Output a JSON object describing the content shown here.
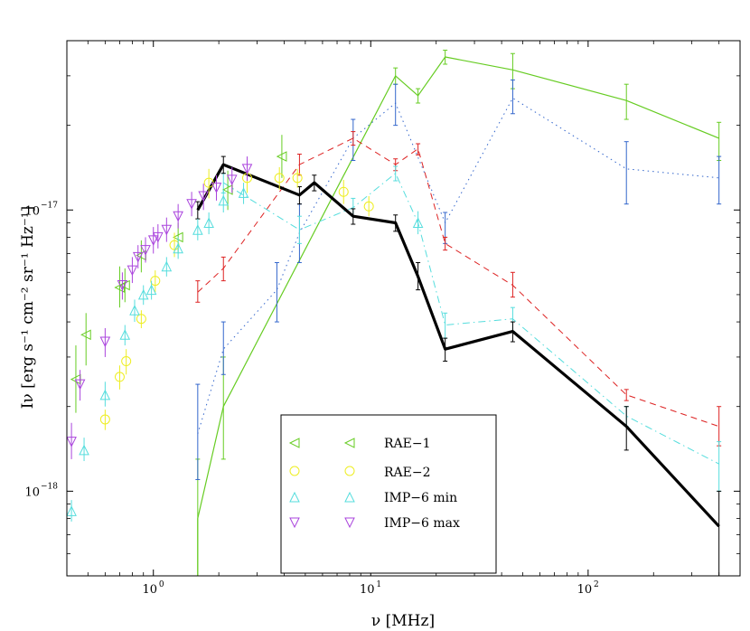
{
  "chart_data": {
    "type": "line",
    "title": "",
    "xlabel": "ν [MHz]",
    "ylabel": "Iν [erg s⁻¹ cm⁻² sr⁻¹ Hz⁻¹]",
    "xscale": "log",
    "yscale": "log",
    "xlim": [
      0.4,
      500
    ],
    "ylim": [
      5e-19,
      4e-17
    ],
    "x_ticks": [
      {
        "value": 1,
        "label": "10",
        "exp": "0"
      },
      {
        "value": 10,
        "label": "10",
        "exp": "1"
      },
      {
        "value": 100,
        "label": "10",
        "exp": "2"
      }
    ],
    "y_ticks": [
      {
        "value": 1e-18,
        "label": "10",
        "exp": "−18"
      },
      {
        "value": 1e-17,
        "label": "10",
        "exp": "−17"
      }
    ],
    "legend": {
      "position": "bottom-center",
      "entries": [
        {
          "label": "RAE−1",
          "marker": "triangle-left",
          "color": "#66cc22"
        },
        {
          "label": "RAE−2",
          "marker": "circle",
          "color": "#eeee22"
        },
        {
          "label": "IMP−6 min",
          "marker": "triangle-up",
          "color": "#55dddd"
        },
        {
          "label": "IMP−6 max",
          "marker": "triangle-down",
          "color": "#aa44dd"
        }
      ]
    },
    "series": [
      {
        "name": "RAE-1",
        "marker": "triangle-left",
        "color": "#66cc22",
        "points": [
          {
            "x": 0.44,
            "y": 2.5e-18,
            "lo": 1.9e-18,
            "hi": 3.3e-18
          },
          {
            "x": 0.49,
            "y": 3.6e-18,
            "lo": 2.8e-18,
            "hi": 4.3e-18
          },
          {
            "x": 0.7,
            "y": 5.3e-18,
            "lo": 4.5e-18,
            "hi": 6.3e-18
          },
          {
            "x": 0.74,
            "y": 5.4e-18,
            "lo": 4.7e-18,
            "hi": 6.2e-18
          },
          {
            "x": 0.88,
            "y": 6.9e-18,
            "lo": 6e-18,
            "hi": 7.8e-18
          },
          {
            "x": 1.3,
            "y": 8e-18,
            "lo": 7e-18,
            "hi": 9e-18
          },
          {
            "x": 2.2,
            "y": 1.18e-17,
            "lo": 1e-17,
            "hi": 1.38e-17
          },
          {
            "x": 3.9,
            "y": 1.55e-17,
            "lo": 1.3e-17,
            "hi": 1.85e-17
          }
        ]
      },
      {
        "name": "RAE-2",
        "marker": "circle",
        "color": "#eeee22",
        "points": [
          {
            "x": 0.6,
            "y": 1.8e-18,
            "lo": 1.65e-18,
            "hi": 1.95e-18
          },
          {
            "x": 0.7,
            "y": 2.55e-18,
            "lo": 2.3e-18,
            "hi": 2.8e-18
          },
          {
            "x": 0.75,
            "y": 2.9e-18,
            "lo": 2.6e-18,
            "hi": 3.2e-18
          },
          {
            "x": 0.88,
            "y": 4.1e-18,
            "lo": 3.8e-18,
            "hi": 4.4e-18
          },
          {
            "x": 1.02,
            "y": 5.6e-18,
            "lo": 5.1e-18,
            "hi": 6.1e-18
          },
          {
            "x": 1.25,
            "y": 7.5e-18,
            "lo": 6.8e-18,
            "hi": 8.3e-18
          },
          {
            "x": 1.8,
            "y": 1.25e-17,
            "lo": 1.1e-17,
            "hi": 1.4e-17
          },
          {
            "x": 2.7,
            "y": 1.3e-17,
            "lo": 1.15e-17,
            "hi": 1.45e-17
          },
          {
            "x": 3.8,
            "y": 1.3e-17,
            "lo": 1.18e-17,
            "hi": 1.42e-17
          },
          {
            "x": 4.6,
            "y": 1.3e-17,
            "lo": 1.2e-17,
            "hi": 1.4e-17
          },
          {
            "x": 7.5,
            "y": 1.16e-17,
            "lo": 1.05e-17,
            "hi": 1.28e-17
          },
          {
            "x": 9.8,
            "y": 1.03e-17,
            "lo": 9.5e-18,
            "hi": 1.12e-17
          }
        ]
      },
      {
        "name": "IMP-6 min",
        "marker": "triangle-up",
        "color": "#55dddd",
        "points": [
          {
            "x": 0.42,
            "y": 8.5e-19,
            "lo": 7.8e-19,
            "hi": 9.3e-19
          },
          {
            "x": 0.48,
            "y": 1.4e-18,
            "lo": 1.28e-18,
            "hi": 1.55e-18
          },
          {
            "x": 0.6,
            "y": 2.2e-18,
            "lo": 2e-18,
            "hi": 2.45e-18
          },
          {
            "x": 0.74,
            "y": 3.6e-18,
            "lo": 3.3e-18,
            "hi": 3.9e-18
          },
          {
            "x": 0.82,
            "y": 4.4e-18,
            "lo": 4e-18,
            "hi": 4.8e-18
          },
          {
            "x": 0.9,
            "y": 5e-18,
            "lo": 4.6e-18,
            "hi": 5.4e-18
          },
          {
            "x": 0.98,
            "y": 5.2e-18,
            "lo": 4.8e-18,
            "hi": 5.6e-18
          },
          {
            "x": 1.15,
            "y": 6.3e-18,
            "lo": 5.8e-18,
            "hi": 6.8e-18
          },
          {
            "x": 1.3,
            "y": 7.3e-18,
            "lo": 6.7e-18,
            "hi": 8e-18
          },
          {
            "x": 1.6,
            "y": 8.5e-18,
            "lo": 7.8e-18,
            "hi": 9.3e-18
          },
          {
            "x": 1.8,
            "y": 9e-18,
            "lo": 8.2e-18,
            "hi": 9.8e-18
          },
          {
            "x": 2.1,
            "y": 1.08e-17,
            "lo": 9.8e-18,
            "hi": 1.18e-17
          },
          {
            "x": 2.6,
            "y": 1.15e-17,
            "lo": 1.05e-17,
            "hi": 1.25e-17
          },
          {
            "x": 16.5,
            "y": 9e-18,
            "lo": 8.2e-18,
            "hi": 9.9e-18
          }
        ]
      },
      {
        "name": "IMP-6 max",
        "marker": "triangle-down",
        "color": "#aa44dd",
        "points": [
          {
            "x": 0.42,
            "y": 1.5e-18,
            "lo": 1.3e-18,
            "hi": 1.75e-18
          },
          {
            "x": 0.46,
            "y": 2.4e-18,
            "lo": 2.1e-18,
            "hi": 2.7e-18
          },
          {
            "x": 0.6,
            "y": 3.4e-18,
            "lo": 3e-18,
            "hi": 3.8e-18
          },
          {
            "x": 0.72,
            "y": 5.4e-18,
            "lo": 4.8e-18,
            "hi": 6e-18
          },
          {
            "x": 0.8,
            "y": 6.1e-18,
            "lo": 5.5e-18,
            "hi": 6.8e-18
          },
          {
            "x": 0.85,
            "y": 6.8e-18,
            "lo": 6.2e-18,
            "hi": 7.5e-18
          },
          {
            "x": 0.92,
            "y": 7.2e-18,
            "lo": 6.5e-18,
            "hi": 8e-18
          },
          {
            "x": 1.0,
            "y": 7.8e-18,
            "lo": 7e-18,
            "hi": 8.7e-18
          },
          {
            "x": 1.05,
            "y": 8e-18,
            "lo": 7.3e-18,
            "hi": 8.9e-18
          },
          {
            "x": 1.15,
            "y": 8.5e-18,
            "lo": 7.7e-18,
            "hi": 9.4e-18
          },
          {
            "x": 1.3,
            "y": 9.5e-18,
            "lo": 8.6e-18,
            "hi": 1.05e-17
          },
          {
            "x": 1.5,
            "y": 1.05e-17,
            "lo": 9.5e-18,
            "hi": 1.16e-17
          },
          {
            "x": 1.7,
            "y": 1.12e-17,
            "lo": 1e-17,
            "hi": 1.24e-17
          },
          {
            "x": 1.95,
            "y": 1.2e-17,
            "lo": 1.08e-17,
            "hi": 1.33e-17
          },
          {
            "x": 2.3,
            "y": 1.28e-17,
            "lo": 1.15e-17,
            "hi": 1.42e-17
          },
          {
            "x": 2.7,
            "y": 1.4e-17,
            "lo": 1.27e-17,
            "hi": 1.55e-17
          }
        ]
      }
    ],
    "lines": [
      {
        "name": "green-solid",
        "color": "#66cc22",
        "style": "solid",
        "width": 1.2,
        "points": [
          {
            "x": 1.6,
            "y": 5e-19
          },
          {
            "x": 1.6,
            "y": 8e-19,
            "lo": 5e-19,
            "hi": 1.3e-18
          },
          {
            "x": 2.1,
            "y": 2e-18,
            "lo": 1.3e-18,
            "hi": 3e-18
          },
          {
            "x": 13,
            "y": 3e-17,
            "lo": 2.8e-17,
            "hi": 3.2e-17
          },
          {
            "x": 16.5,
            "y": 2.55e-17,
            "lo": 2.4e-17,
            "hi": 2.7e-17
          },
          {
            "x": 22,
            "y": 3.5e-17,
            "lo": 3.3e-17,
            "hi": 3.7e-17
          },
          {
            "x": 45,
            "y": 3.15e-17,
            "lo": 2.7e-17,
            "hi": 3.6e-17
          },
          {
            "x": 150,
            "y": 2.45e-17,
            "lo": 2.1e-17,
            "hi": 2.8e-17
          },
          {
            "x": 400,
            "y": 1.8e-17,
            "lo": 1.5e-17,
            "hi": 2.05e-17
          }
        ]
      },
      {
        "name": "blue-dotted",
        "color": "#3366cc",
        "style": "dotted",
        "width": 1,
        "points": [
          {
            "x": 1.6,
            "y": 1.6e-18,
            "lo": 1.1e-18,
            "hi": 2.4e-18
          },
          {
            "x": 2.1,
            "y": 3.2e-18,
            "lo": 2.6e-18,
            "hi": 4e-18
          },
          {
            "x": 3.7,
            "y": 5.2e-18,
            "lo": 4e-18,
            "hi": 6.5e-18
          },
          {
            "x": 4.7,
            "y": 8.3e-18,
            "lo": 6.5e-18,
            "hi": 1.05e-17
          },
          {
            "x": 8.3,
            "y": 1.8e-17,
            "lo": 1.5e-17,
            "hi": 2.1e-17
          },
          {
            "x": 13,
            "y": 2.4e-17,
            "lo": 2e-17,
            "hi": 2.8e-17
          },
          {
            "x": 22,
            "y": 9e-18,
            "lo": 7.6e-18,
            "hi": 9.8e-18
          },
          {
            "x": 45,
            "y": 2.5e-17,
            "lo": 2.2e-17,
            "hi": 2.9e-17
          },
          {
            "x": 150,
            "y": 1.4e-17,
            "lo": 1.05e-17,
            "hi": 1.75e-17
          },
          {
            "x": 400,
            "y": 1.3e-17,
            "lo": 1.05e-17,
            "hi": 1.55e-17
          }
        ]
      },
      {
        "name": "red-dashed",
        "color": "#dd2222",
        "style": "dashed",
        "width": 1,
        "points": [
          {
            "x": 1.6,
            "y": 5.1e-18,
            "lo": 4.7e-18,
            "hi": 5.6e-18
          },
          {
            "x": 2.1,
            "y": 6.2e-18,
            "lo": 5.6e-18,
            "hi": 6.8e-18
          },
          {
            "x": 4.7,
            "y": 1.45e-17,
            "lo": 1.33e-17,
            "hi": 1.58e-17
          },
          {
            "x": 8.3,
            "y": 1.8e-17,
            "lo": 1.7e-17,
            "hi": 1.9e-17
          },
          {
            "x": 13,
            "y": 1.45e-17,
            "lo": 1.38e-17,
            "hi": 1.52e-17
          },
          {
            "x": 16.5,
            "y": 1.65e-17,
            "lo": 1.57e-17,
            "hi": 1.72e-17
          },
          {
            "x": 22,
            "y": 7.6e-18,
            "lo": 7.2e-18,
            "hi": 8e-18
          },
          {
            "x": 45,
            "y": 5.4e-18,
            "lo": 4.9e-18,
            "hi": 6e-18
          },
          {
            "x": 150,
            "y": 2.2e-18,
            "lo": 2.1e-18,
            "hi": 2.3e-18
          },
          {
            "x": 400,
            "y": 1.7e-18,
            "lo": 1.45e-18,
            "hi": 2e-18
          }
        ]
      },
      {
        "name": "cyan-dashdot",
        "color": "#55dddd",
        "style": "dashdot",
        "width": 1,
        "points": [
          {
            "x": 2.1,
            "y": 1.25e-17,
            "lo": 1.15e-17,
            "hi": 1.35e-17
          },
          {
            "x": 4.7,
            "y": 8.5e-18,
            "lo": 7.6e-18,
            "hi": 9.5e-18
          },
          {
            "x": 8.3,
            "y": 1.02e-17,
            "lo": 9.5e-18,
            "hi": 1.1e-17
          },
          {
            "x": 13,
            "y": 1.35e-17,
            "lo": 1.27e-17,
            "hi": 1.43e-17
          },
          {
            "x": 16.5,
            "y": 9e-18
          },
          {
            "x": 22,
            "y": 3.9e-18,
            "lo": 3.5e-18,
            "hi": 4.3e-18
          },
          {
            "x": 45,
            "y": 4.1e-18,
            "lo": 3.7e-18,
            "hi": 4.5e-18
          },
          {
            "x": 150,
            "y": 1.85e-18,
            "lo": 1.7e-18,
            "hi": 2e-18
          },
          {
            "x": 400,
            "y": 1.25e-18,
            "lo": 1e-18,
            "hi": 1.5e-18
          }
        ]
      },
      {
        "name": "black-thick",
        "color": "#000000",
        "style": "solid",
        "width": 3.2,
        "points": [
          {
            "x": 1.6,
            "y": 1e-17,
            "lo": 9.3e-18,
            "hi": 1.07e-17
          },
          {
            "x": 2.1,
            "y": 1.45e-17,
            "lo": 1.35e-17,
            "hi": 1.55e-17
          },
          {
            "x": 4.7,
            "y": 1.13e-17,
            "lo": 1.05e-17,
            "hi": 1.21e-17
          },
          {
            "x": 5.5,
            "y": 1.25e-17,
            "lo": 1.17e-17,
            "hi": 1.33e-17
          },
          {
            "x": 8.3,
            "y": 9.5e-18,
            "lo": 8.9e-18,
            "hi": 1.01e-17
          },
          {
            "x": 13,
            "y": 9e-18,
            "lo": 8.4e-18,
            "hi": 9.6e-18
          },
          {
            "x": 16.5,
            "y": 5.8e-18,
            "lo": 5.2e-18,
            "hi": 6.5e-18
          },
          {
            "x": 22,
            "y": 3.2e-18,
            "lo": 2.9e-18,
            "hi": 3.5e-18
          },
          {
            "x": 45,
            "y": 3.7e-18,
            "lo": 3.4e-18,
            "hi": 4e-18
          },
          {
            "x": 150,
            "y": 1.7e-18,
            "lo": 1.4e-18,
            "hi": 2e-18
          },
          {
            "x": 400,
            "y": 7.5e-19,
            "lo": 5e-19,
            "hi": 1e-18
          }
        ]
      }
    ]
  }
}
